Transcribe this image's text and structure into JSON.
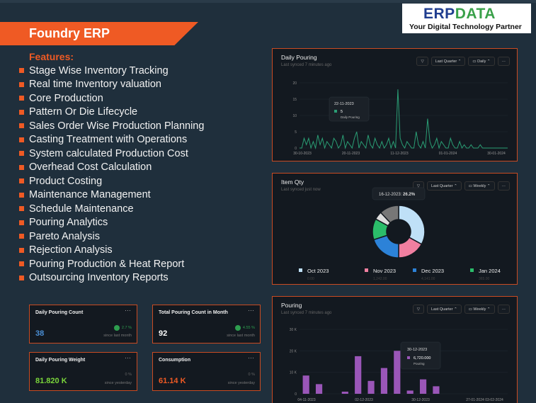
{
  "header": {
    "title": "Foundry ERP"
  },
  "logo": {
    "brand_erp": "ERP",
    "brand_data": "DATA",
    "tagline": "Your Digital Technology Partner"
  },
  "features": {
    "title": "Features:",
    "items": [
      "Stage Wise Inventory Tracking",
      "Real time Inventory valuation",
      "Core Production",
      "Pattern Or Die Lifecycle",
      "Sales Order Wise Production Planning",
      "Casting Treatment with Operations",
      "System calculated Production Cost",
      "Overhead Cost Calculation",
      "Product Costing",
      "Maintenance Management",
      "Schedule Maintenance",
      "Pouring Analytics",
      "Pareto Analysis",
      "Rejection Analysis",
      "Pouring Production & Heat Report",
      "Outsourcing Inventory Reports"
    ]
  },
  "cards": [
    {
      "name": "Daily Pouring Count",
      "value": "38",
      "value_color": "#4a8fd6",
      "change": "2.7 %",
      "sub": "since last month",
      "positive": true
    },
    {
      "name": "Total Pouring Count in Month",
      "value": "92",
      "value_color": "#ffffff",
      "change": "4.55 %",
      "sub": "since last month",
      "positive": true
    },
    {
      "name": "Daily Pouring Weight",
      "value": "81.820 K",
      "value_color": "#7ad63a",
      "change": "0 %",
      "sub": "since yesterday",
      "positive": false
    },
    {
      "name": "Consumption",
      "value": "61.14 K",
      "value_color": "#ef5a24",
      "change": "0 %",
      "sub": "since yesterday",
      "positive": false
    }
  ],
  "daily_pouring": {
    "title": "Daily Pouring",
    "sync": "Last synced 7 minutes ago",
    "period": "Last Quarter",
    "granularity": "Daily",
    "more": "···",
    "tooltip": {
      "date": "22-11-2023",
      "value": "5",
      "series": "Daily Pouring"
    }
  },
  "item_qty": {
    "title": "Item Qty",
    "sync": "Last synced just now",
    "period": "Last Quarter",
    "granularity": "Weekly",
    "more": "···",
    "tooltip": {
      "date": "16-12-2023:",
      "value": "26.2%"
    }
  },
  "pouring": {
    "title": "Pouring",
    "sync": "Last synced 7 minutes ago",
    "period": "Last Quarter",
    "granularity": "Weekly",
    "more": "···",
    "tooltip": {
      "date": "30-12-2023",
      "value": "6,720.000",
      "series": "Pouring"
    }
  },
  "chart_data": [
    {
      "type": "line",
      "color": "#2a9d74",
      "ylim": [
        0,
        20
      ],
      "yticks": [
        "0",
        "5",
        "10",
        "15",
        "20"
      ],
      "xticks": [
        "30-10-2023",
        "20-11-2023",
        "11-12-2023",
        "01-01-2024",
        "30-01-2024"
      ],
      "values": [
        0,
        0,
        3,
        1,
        3,
        0,
        2,
        0,
        4,
        1,
        3,
        0,
        2,
        1,
        0,
        3,
        2,
        0,
        1,
        4,
        0,
        2,
        1,
        0,
        3,
        5,
        0,
        2,
        1,
        0,
        4,
        1,
        0,
        3,
        1,
        0,
        2,
        0,
        1,
        3,
        0,
        2,
        0,
        18,
        3,
        1,
        0,
        2,
        1,
        0,
        0,
        5,
        1,
        0,
        2,
        0,
        9,
        2,
        0,
        1,
        3,
        0,
        2,
        1,
        0,
        0,
        3,
        1,
        0,
        0,
        2,
        0,
        1,
        0,
        0,
        1,
        0,
        0,
        0,
        1,
        0,
        0,
        0,
        0,
        0,
        0,
        0,
        0,
        0,
        0,
        0,
        0
      ]
    },
    {
      "type": "pie",
      "legend": [
        {
          "label": "Oct 2023",
          "sub": "0.00",
          "color": "#bfe0f7"
        },
        {
          "label": "Nov 2023",
          "sub": "1,242.00",
          "color": "#f07fa0"
        },
        {
          "label": "Dec 2023",
          "sub": "4,141.00",
          "color": "#2c82d8"
        },
        {
          "label": "Jan 2024",
          "sub": "365.00",
          "color": "#2bbd6a"
        }
      ],
      "slices": [
        {
          "value": 33,
          "color": "#bfe0f7"
        },
        {
          "value": 17,
          "color": "#f07fa0"
        },
        {
          "value": 20,
          "color": "#2c82d8"
        },
        {
          "value": 13,
          "color": "#2bbd6a"
        },
        {
          "value": 5,
          "color": "#dddddd"
        },
        {
          "value": 12,
          "color": "#777777"
        }
      ]
    },
    {
      "type": "bar",
      "color": "#9a56b8",
      "ylim": [
        0,
        30000
      ],
      "yticks": [
        "0",
        "10 K",
        "20 K",
        "30 K"
      ],
      "xticks": [
        "04-11-2023",
        "02-12-2023",
        "30-12-2023",
        "27-01-2024",
        "03-02-2024"
      ],
      "values": [
        8500,
        4500,
        0,
        1000,
        17500,
        6000,
        12000,
        20000,
        1500,
        6720,
        3500,
        0,
        0,
        0,
        0,
        0
      ]
    }
  ]
}
